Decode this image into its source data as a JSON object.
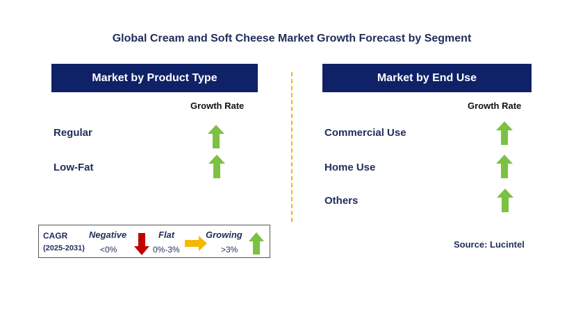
{
  "title": "Global Cream and Soft Cheese Market Growth Forecast by Segment",
  "left_panel": {
    "header": "Market by Product Type",
    "growth_rate_label": "Growth Rate",
    "rows": [
      {
        "label": "Regular",
        "trend": "growing"
      },
      {
        "label": "Low-Fat",
        "trend": "growing"
      }
    ]
  },
  "right_panel": {
    "header": "Market by End Use",
    "growth_rate_label": "Growth Rate",
    "rows": [
      {
        "label": "Commercial Use",
        "trend": "growing"
      },
      {
        "label": "Home Use",
        "trend": "growing"
      },
      {
        "label": "Others",
        "trend": "growing"
      }
    ]
  },
  "legend": {
    "cagr_label": "CAGR",
    "period": "(2025-2031)",
    "negative": {
      "label": "Negative",
      "range": "<0%",
      "icon": "down-arrow-icon",
      "color": "#c00000"
    },
    "flat": {
      "label": "Flat",
      "range": "0%-3%",
      "icon": "right-arrow-icon",
      "color": "#f5b800"
    },
    "growing": {
      "label": "Growing",
      "range": ">3%",
      "icon": "up-arrow-icon",
      "color": "#7cc142"
    }
  },
  "source": "Source: Lucintel",
  "colors": {
    "header_bg": "#0f2167",
    "divider": "#f2b705",
    "growing_arrow": "#7cc142"
  }
}
